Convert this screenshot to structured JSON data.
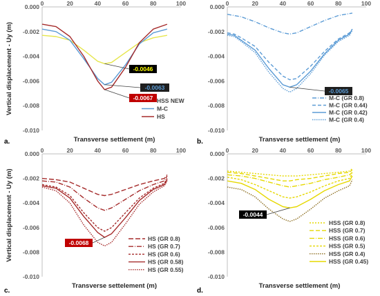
{
  "chart_data": [
    {
      "type": "line",
      "panel_label": "a.",
      "xlabel": "Transverse settlement (m)",
      "ylabel": "Vertical displacement - Uy (m)",
      "xlim": [
        0,
        100
      ],
      "ylim": [
        -0.01,
        0.0
      ],
      "xticks": [
        "0",
        "20",
        "40",
        "60",
        "80",
        "100"
      ],
      "yticks": [
        "0.000",
        "-0.002",
        "-0.004",
        "-0.006",
        "-0.008",
        "-0.010"
      ],
      "grid": false,
      "legend_position": "bottom-right",
      "series": [
        {
          "name": "HSS NEW",
          "color": "#e6e64c",
          "dash": "",
          "x": [
            0,
            10,
            20,
            30,
            40,
            45,
            50,
            60,
            70,
            80,
            90
          ],
          "y": [
            -0.0023,
            -0.0024,
            -0.0027,
            -0.0035,
            -0.0044,
            -0.0046,
            -0.0045,
            -0.0037,
            -0.0029,
            -0.0025,
            -0.0023
          ]
        },
        {
          "name": "M-C",
          "color": "#5b9bd5",
          "dash": "",
          "x": [
            0,
            10,
            20,
            30,
            40,
            45,
            50,
            60,
            70,
            80,
            90
          ],
          "y": [
            -0.0018,
            -0.002,
            -0.0027,
            -0.0042,
            -0.0058,
            -0.0063,
            -0.0061,
            -0.0047,
            -0.003,
            -0.0021,
            -0.0018
          ]
        },
        {
          "name": "HS",
          "color": "#a52a2a",
          "dash": "",
          "x": [
            0,
            10,
            20,
            30,
            40,
            45,
            50,
            60,
            70,
            80,
            90
          ],
          "y": [
            -0.0014,
            -0.0016,
            -0.0024,
            -0.004,
            -0.006,
            -0.0067,
            -0.0065,
            -0.0049,
            -0.0029,
            -0.0018,
            -0.0014
          ]
        }
      ],
      "annotations": [
        {
          "text": "-0.0046",
          "bg": "#000000",
          "fg": "#ffff00",
          "target": [
            45,
            -0.0046
          ]
        },
        {
          "text": "-0.0063",
          "bg": "#1f1f1f",
          "fg": "#5b9bd5",
          "target": [
            45,
            -0.0063
          ]
        },
        {
          "text": "-0.0067",
          "bg": "#c00000",
          "fg": "#ffffff",
          "target": [
            45,
            -0.0067
          ]
        }
      ]
    },
    {
      "type": "line",
      "panel_label": "b.",
      "xlabel": "Transverse settlement (m)",
      "ylabel": "",
      "xlim": [
        0,
        100
      ],
      "ylim": [
        -0.01,
        0.0
      ],
      "xticks": [
        "0",
        "20",
        "40",
        "60",
        "80",
        "100"
      ],
      "yticks": [
        "0.000",
        "-0.002",
        "-0.004",
        "-0.006",
        "-0.008",
        "-0.010"
      ],
      "grid": false,
      "legend_position": "bottom-right",
      "series": [
        {
          "name": "M-C (GR 0.8)",
          "color": "#5b9bd5",
          "dash": "6,2,1,2",
          "x": [
            0,
            10,
            20,
            30,
            40,
            45,
            50,
            60,
            70,
            80,
            90
          ],
          "y": [
            -0.0006,
            -0.0008,
            -0.0012,
            -0.0017,
            -0.0021,
            -0.0022,
            -0.0021,
            -0.0016,
            -0.0011,
            -0.0007,
            -0.0005
          ]
        },
        {
          "name": "M-C (GR 0.44)",
          "color": "#5b9bd5",
          "dash": "5,3",
          "x": [
            0,
            5,
            10,
            20,
            30,
            40,
            45,
            50,
            60,
            70,
            80,
            88,
            90
          ],
          "y": [
            -0.0021,
            -0.0022,
            -0.0025,
            -0.0032,
            -0.0045,
            -0.0056,
            -0.0059,
            -0.0058,
            -0.0048,
            -0.0036,
            -0.0026,
            -0.0021,
            -0.0018
          ]
        },
        {
          "name": "M-C (GR 0.42)",
          "color": "#5b9bd5",
          "dash": "",
          "x": [
            0,
            5,
            10,
            20,
            30,
            40,
            45,
            50,
            60,
            70,
            80,
            88,
            90
          ],
          "y": [
            -0.0022,
            -0.0023,
            -0.0027,
            -0.0035,
            -0.005,
            -0.0063,
            -0.0065,
            -0.0063,
            -0.0052,
            -0.0038,
            -0.0027,
            -0.0022,
            -0.0018
          ]
        },
        {
          "name": "M-C (GR 0.4)",
          "color": "#5b9bd5",
          "dash": "1.5,1.5",
          "x": [
            0,
            5,
            10,
            20,
            30,
            40,
            45,
            50,
            60,
            70,
            80,
            88,
            90
          ],
          "y": [
            -0.0023,
            -0.0024,
            -0.0028,
            -0.0037,
            -0.0053,
            -0.0066,
            -0.0069,
            -0.0066,
            -0.0054,
            -0.0039,
            -0.0028,
            -0.0023,
            -0.0019
          ]
        }
      ],
      "annotations": [
        {
          "text": "-0.0065",
          "bg": "#1f1f1f",
          "fg": "#5b9bd5",
          "target": [
            45,
            -0.0065
          ]
        }
      ]
    },
    {
      "type": "line",
      "panel_label": "c.",
      "xlabel": "Transverse settelement (m)",
      "ylabel": "Vertical displacement - Uy (m)",
      "xlim": [
        0,
        100
      ],
      "ylim": [
        -0.01,
        0.0
      ],
      "xticks": [
        "0",
        "20",
        "40",
        "60",
        "80",
        "100"
      ],
      "yticks": [
        "0.000",
        "-0.002",
        "-0.004",
        "-0.006",
        "-0.008",
        "-0.010"
      ],
      "grid": false,
      "legend_position": "bottom-right",
      "series": [
        {
          "name": "HS (GR 0.8)",
          "color": "#a52a2a",
          "dash": "7,3",
          "x": [
            0,
            10,
            20,
            30,
            40,
            45,
            50,
            60,
            70,
            80,
            88,
            90
          ],
          "y": [
            -0.002,
            -0.0021,
            -0.0023,
            -0.0028,
            -0.0033,
            -0.0034,
            -0.0033,
            -0.0029,
            -0.0025,
            -0.0022,
            -0.002,
            -0.0017
          ]
        },
        {
          "name": "HS (GR 0.7)",
          "color": "#a52a2a",
          "dash": "7,2,1,2",
          "x": [
            0,
            10,
            20,
            30,
            40,
            45,
            50,
            60,
            70,
            80,
            88,
            90
          ],
          "y": [
            -0.0022,
            -0.0023,
            -0.0027,
            -0.0036,
            -0.0044,
            -0.0046,
            -0.0044,
            -0.0037,
            -0.003,
            -0.0025,
            -0.0022,
            -0.0018
          ]
        },
        {
          "name": "HS (GR 0.6)",
          "color": "#a52a2a",
          "dash": "3,2",
          "x": [
            0,
            10,
            20,
            30,
            40,
            45,
            50,
            60,
            70,
            80,
            88,
            90
          ],
          "y": [
            -0.0025,
            -0.0027,
            -0.0034,
            -0.0048,
            -0.006,
            -0.0063,
            -0.006,
            -0.0048,
            -0.0036,
            -0.0028,
            -0.0024,
            -0.002
          ]
        },
        {
          "name": "HS (GR 0.58)",
          "color": "#a52a2a",
          "dash": "",
          "x": [
            0,
            10,
            20,
            30,
            40,
            45,
            50,
            60,
            70,
            80,
            88,
            90
          ],
          "y": [
            -0.0026,
            -0.0028,
            -0.0036,
            -0.0051,
            -0.0064,
            -0.0068,
            -0.0065,
            -0.0052,
            -0.0038,
            -0.0029,
            -0.0025,
            -0.0021
          ]
        },
        {
          "name": "HS (GR 0.55)",
          "color": "#a52a2a",
          "dash": "1.5,1.5",
          "x": [
            0,
            10,
            20,
            30,
            40,
            45,
            50,
            60,
            70,
            80,
            88,
            90
          ],
          "y": [
            -0.0027,
            -0.003,
            -0.004,
            -0.0058,
            -0.0072,
            -0.0075,
            -0.0072,
            -0.0057,
            -0.0041,
            -0.0031,
            -0.0026,
            -0.0022
          ]
        }
      ],
      "annotations": [
        {
          "text": "-0.0068",
          "bg": "#c00000",
          "fg": "#ffffff",
          "target": [
            45,
            -0.0068
          ]
        }
      ]
    },
    {
      "type": "line",
      "panel_label": "d.",
      "xlabel": "Transverse settlement (m)",
      "ylabel": "",
      "xlim": [
        0,
        100
      ],
      "ylim": [
        -0.01,
        0.0
      ],
      "xticks": [
        "0",
        "20",
        "40",
        "60",
        "80",
        "100"
      ],
      "yticks": [
        "0.000",
        "-0.002",
        "-0.004",
        "-0.006",
        "-0.008",
        "-0.010"
      ],
      "grid": false,
      "legend_position": "bottom-right",
      "series": [
        {
          "name": "HSS (GR 0.8)",
          "color": "#e6d800",
          "dash": "2,2",
          "x": [
            0,
            10,
            20,
            30,
            40,
            45,
            50,
            60,
            70,
            80,
            88,
            90
          ],
          "y": [
            -0.0014,
            -0.0015,
            -0.0016,
            -0.0017,
            -0.0018,
            -0.0018,
            -0.0018,
            -0.0017,
            -0.0016,
            -0.0015,
            -0.0014,
            -0.0012
          ]
        },
        {
          "name": "HSS (GR 0.7)",
          "color": "#e6d800",
          "dash": "6,3",
          "x": [
            0,
            10,
            20,
            30,
            40,
            45,
            50,
            60,
            70,
            80,
            88,
            90
          ],
          "y": [
            -0.0015,
            -0.0016,
            -0.0018,
            -0.002,
            -0.0022,
            -0.0022,
            -0.0021,
            -0.002,
            -0.0018,
            -0.0016,
            -0.0015,
            -0.0013
          ]
        },
        {
          "name": "HSS (GR 0.6)",
          "color": "#e6d800",
          "dash": "7,2,1,2",
          "x": [
            0,
            10,
            20,
            30,
            40,
            45,
            50,
            60,
            70,
            80,
            88,
            90
          ],
          "y": [
            -0.0017,
            -0.0018,
            -0.002,
            -0.0023,
            -0.0026,
            -0.0027,
            -0.0026,
            -0.0024,
            -0.0021,
            -0.0019,
            -0.0017,
            -0.0015
          ]
        },
        {
          "name": "HSS (GR 0.5)",
          "color": "#e6d800",
          "dash": "3,2",
          "x": [
            0,
            10,
            20,
            30,
            40,
            45,
            50,
            60,
            70,
            80,
            88,
            90
          ],
          "y": [
            -0.0019,
            -0.0021,
            -0.0025,
            -0.003,
            -0.0035,
            -0.0036,
            -0.0035,
            -0.0031,
            -0.0026,
            -0.0022,
            -0.002,
            -0.0016
          ]
        },
        {
          "name": "HSS (GR 0.4)",
          "color": "#8c6d1f",
          "dash": "1.5,1.5",
          "x": [
            0,
            10,
            20,
            30,
            40,
            45,
            50,
            60,
            70,
            80,
            88,
            90
          ],
          "y": [
            -0.0027,
            -0.0029,
            -0.0035,
            -0.0045,
            -0.0053,
            -0.0055,
            -0.0053,
            -0.0045,
            -0.0036,
            -0.003,
            -0.0026,
            -0.0021
          ]
        },
        {
          "name": "HSS (GR 0.45)",
          "color": "#e6d800",
          "dash": "",
          "x": [
            0,
            10,
            20,
            30,
            40,
            45,
            50,
            60,
            70,
            80,
            88,
            90
          ],
          "y": [
            -0.0022,
            -0.0024,
            -0.0029,
            -0.0037,
            -0.0043,
            -0.0044,
            -0.0043,
            -0.0037,
            -0.003,
            -0.0025,
            -0.0022,
            -0.0018
          ]
        }
      ],
      "annotations": [
        {
          "text": "-0.0044",
          "bg": "#000000",
          "fg": "#ffffff",
          "target": [
            45,
            -0.0044
          ]
        }
      ]
    }
  ]
}
